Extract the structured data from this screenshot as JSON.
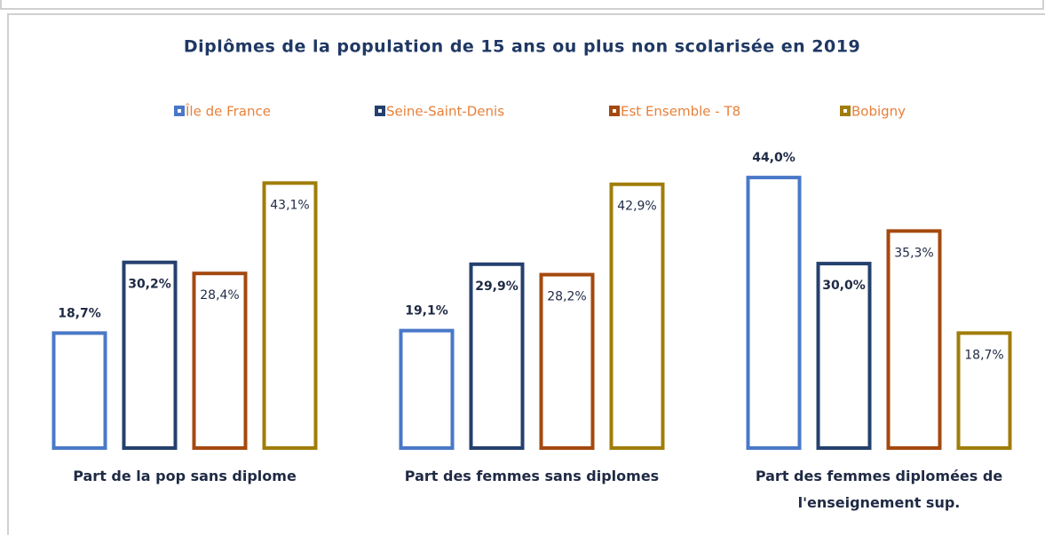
{
  "chart_data": {
    "type": "bar",
    "title": "Diplômes de la population de 15 ans ou plus non scolarisée en 2019",
    "categories": [
      "Part de la pop sans diplome",
      "Part des femmes sans diplomes",
      "Part des femmes diplomées de l'enseignement sup."
    ],
    "series": [
      {
        "name": "Île de France",
        "color": "#4a78c8",
        "values": [
          18.7,
          19.1,
          44.0
        ],
        "value_labels": [
          "18,7%",
          "19,1%",
          "44,0%"
        ]
      },
      {
        "name": "Seine-Saint-Denis",
        "color": "#24406e",
        "values": [
          30.2,
          29.9,
          30.0
        ],
        "value_labels": [
          "30,2%",
          "29,9%",
          "30,0%"
        ]
      },
      {
        "name": "Est Ensemble - T8",
        "color": "#a4490f",
        "values": [
          28.4,
          28.2,
          35.3
        ],
        "value_labels": [
          "28,4%",
          "28,2%",
          "35,3%"
        ]
      },
      {
        "name": "Bobigny",
        "color": "#a07d0a",
        "values": [
          43.1,
          42.9,
          18.7
        ],
        "value_labels": [
          "43,1%",
          "42,9%",
          "18,7%"
        ]
      }
    ],
    "legend": "top"
  }
}
